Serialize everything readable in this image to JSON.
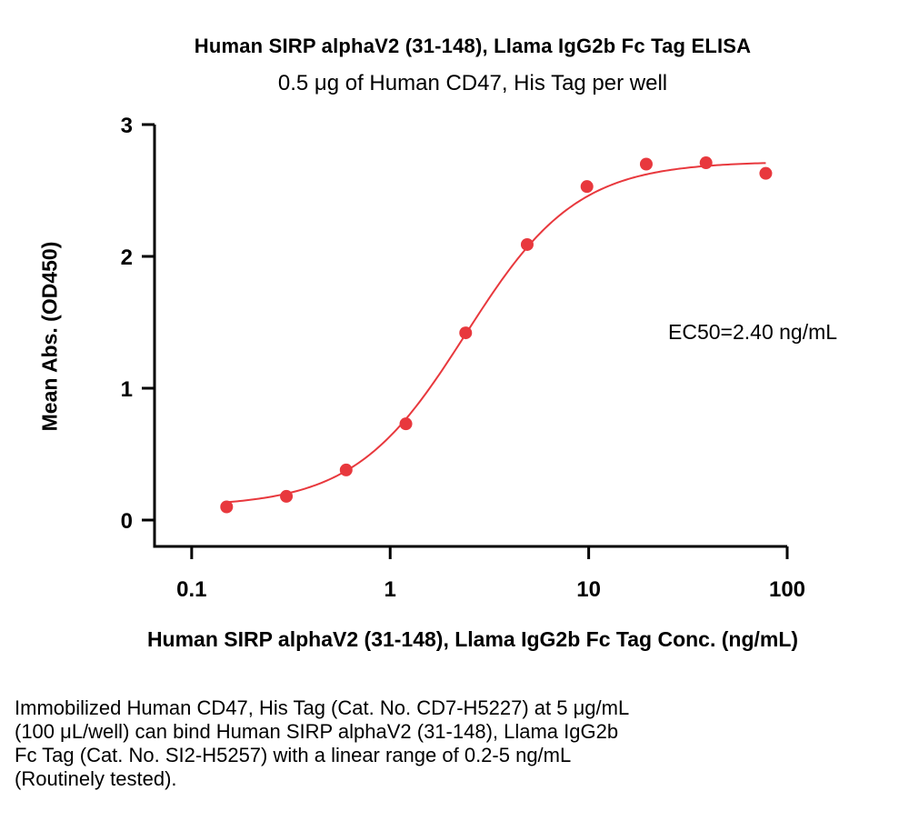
{
  "chart_data": {
    "type": "scatter",
    "title": "Human SIRP alphaV2 (31-148), Llama IgG2b Fc Tag ELISA",
    "subtitle": "0.5 μg of Human CD47, His Tag per well",
    "xlabel": "Human SIRP alphaV2 (31-148), Llama IgG2b Fc Tag Conc. (ng/mL)",
    "ylabel": "Mean Abs. (OD450)",
    "x_scale": "log",
    "xlim": [
      0.065,
      100
    ],
    "ylim": [
      -0.2,
      3
    ],
    "x_ticks": [
      {
        "value": 0.1,
        "label": "0.1"
      },
      {
        "value": 1,
        "label": "1"
      },
      {
        "value": 10,
        "label": "10"
      },
      {
        "value": 100,
        "label": "100"
      }
    ],
    "y_ticks": [
      {
        "value": 0,
        "label": "0"
      },
      {
        "value": 1,
        "label": "1"
      },
      {
        "value": 2,
        "label": "2"
      },
      {
        "value": 3,
        "label": "3"
      }
    ],
    "grid": false,
    "series": [
      {
        "color": "#e8383d",
        "x": [
          0.15,
          0.3,
          0.6,
          1.2,
          2.4,
          4.9,
          9.8,
          19.5,
          39,
          78
        ],
        "y": [
          0.1,
          0.18,
          0.38,
          0.73,
          1.42,
          2.09,
          2.53,
          2.7,
          2.71,
          2.63
        ]
      }
    ],
    "fit": {
      "model": "4PL",
      "bottom": 0.1,
      "top": 2.72,
      "ec50": 2.4,
      "hill": 1.55,
      "color": "#e8383d"
    },
    "annotation": "EC50=2.40 ng/mL"
  },
  "caption": [
    "Immobilized Human CD47, His Tag (Cat. No. CD7-H5227) at 5 μg/mL",
    "(100 μL/well) can bind Human SIRP alphaV2 (31-148), Llama IgG2b",
    "Fc Tag (Cat. No. SI2-H5257) with a linear range of 0.2-5 ng/mL",
    "(Routinely tested)."
  ]
}
